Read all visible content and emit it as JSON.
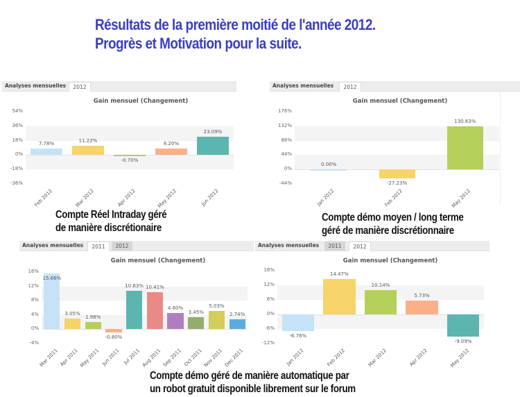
{
  "headline": {
    "line1": "Résultats de la première moitié de l'année 2012.",
    "line2": "Progrès et Motivation pour la suite."
  },
  "captions": {
    "chart1": [
      "Compte Réel Intraday géré",
      "de manière discrétionaire"
    ],
    "chart2": [
      "Compte démo moyen / long terme",
      "géré de manière discrétionnaire"
    ],
    "chart3_4": [
      "Compte démo géré de manière automatique par",
      "un robot gratuit disponible librement sur le forum"
    ]
  },
  "colors": {
    "headline": "#3a3ec4",
    "light_blue": "#c6e2f7",
    "yellow": "#f7d46a",
    "green": "#b4d05a",
    "orange": "#fbb088",
    "teal": "#5db5b0",
    "red": "#e98a85",
    "purple": "#b07ec0",
    "olive_green": "#93ad6e",
    "olive_yellow": "#d4cc5b",
    "blue": "#5aace0"
  },
  "panels": [
    {
      "tab_title": "Analyses mensuelles",
      "tabs": [
        {
          "label": "2012",
          "active": true
        }
      ],
      "chart_title": "Gain mensuel (Changement)"
    },
    {
      "tab_title": "Analyses mensuelles",
      "tabs": [
        {
          "label": "2012",
          "active": true
        }
      ],
      "chart_title": "Gain mensuel (Changement)"
    },
    {
      "tab_title": "Analyses mensuelles",
      "tabs": [
        {
          "label": "2011",
          "active": true
        },
        {
          "label": "2012",
          "active": false
        }
      ],
      "chart_title": "Gain mensuel (Changement)"
    },
    {
      "tab_title": "Analyses mensuelles",
      "tabs": [
        {
          "label": "2011",
          "active": false
        },
        {
          "label": "2012",
          "active": true
        }
      ],
      "chart_title": "Gain mensuel (Changement)"
    }
  ],
  "chart_data": [
    {
      "type": "bar",
      "title": "Gain mensuel (Changement)",
      "subtitle": "Compte Réel Intraday géré de manière discrétionaire",
      "categories": [
        "Feb 2012",
        "Mar 2012",
        "Apr 2012",
        "May 2012",
        "Jun 2012"
      ],
      "values": [
        7.78,
        11.22,
        -0.7,
        8.2,
        23.09
      ],
      "labels": [
        "7.78%",
        "11.22%",
        "-0.70%",
        "8.20%",
        "23.09%"
      ],
      "colors": [
        "#c6e2f7",
        "#f7d46a",
        "#b4d05a",
        "#fbb088",
        "#5db5b0"
      ],
      "yticks": [
        "54%",
        "36%",
        "18%",
        "0%",
        "-18%",
        "-36%"
      ],
      "ylim": [
        -36,
        54
      ],
      "xlabel": "",
      "ylabel": "",
      "grid": "alternating bands"
    },
    {
      "type": "bar",
      "title": "Gain mensuel (Changement)",
      "subtitle": "Compte démo moyen / long terme géré de manière discrétionnaire",
      "categories": [
        "Jan 2012",
        "Feb 2012",
        "May 2012"
      ],
      "values": [
        0.0,
        -27.23,
        130.63
      ],
      "labels": [
        "0.00%",
        "-27.23%",
        "130.63%"
      ],
      "colors": [
        "#c6e2f7",
        "#f7d46a",
        "#b4d05a"
      ],
      "yticks": [
        "176%",
        "132%",
        "88%",
        "44%",
        "0%",
        "-44%"
      ],
      "ylim": [
        -44,
        176
      ],
      "xlabel": "",
      "ylabel": "",
      "grid": "alternating bands"
    },
    {
      "type": "bar",
      "title": "Gain mensuel (Changement)",
      "subtitle": "Compte démo géré de manière automatique (2011)",
      "categories": [
        "Mar 2011",
        "Apr 2011",
        "May 2011",
        "Jun 2011",
        "Jul 2011",
        "Aug 2011",
        "Sep 2011",
        "Oct 2011",
        "Nov 2011",
        "Dec 2011"
      ],
      "values": [
        15.66,
        3.05,
        1.98,
        -0.8,
        10.83,
        10.41,
        4.6,
        3.45,
        5.03,
        2.74
      ],
      "labels": [
        "15.66%",
        "3.05%",
        "1.98%",
        "-0.80%",
        "10.83%",
        "10.41%",
        "4.60%",
        "3.45%",
        "5.03%",
        "2.74%"
      ],
      "colors": [
        "#c6e2f7",
        "#f7d46a",
        "#b4d05a",
        "#fbb088",
        "#5db5b0",
        "#e98a85",
        "#b07ec0",
        "#93ad6e",
        "#d4cc5b",
        "#5aace0"
      ],
      "yticks": [
        "16%",
        "12%",
        "8%",
        "4%",
        "0%",
        "-4%"
      ],
      "ylim": [
        -4,
        16
      ],
      "xlabel": "",
      "ylabel": "",
      "grid": "alternating bands"
    },
    {
      "type": "bar",
      "title": "Gain mensuel (Changement)",
      "subtitle": "Compte démo géré de manière automatique (2012)",
      "categories": [
        "Jan 2012",
        "Feb 2012",
        "Mar 2012",
        "Apr 2012",
        "May 2012"
      ],
      "values": [
        -6.76,
        14.47,
        10.14,
        5.73,
        -9.09
      ],
      "labels": [
        "-6.76%",
        "14.47%",
        "10.14%",
        "5.73%",
        "-9.09%"
      ],
      "colors": [
        "#c6e2f7",
        "#f7d46a",
        "#b4d05a",
        "#fbb088",
        "#5db5b0"
      ],
      "yticks": [
        "18%",
        "12%",
        "6%",
        "0%",
        "-6%",
        "-12%"
      ],
      "ylim": [
        -12,
        18
      ],
      "xlabel": "",
      "ylabel": "",
      "grid": "alternating bands"
    }
  ]
}
